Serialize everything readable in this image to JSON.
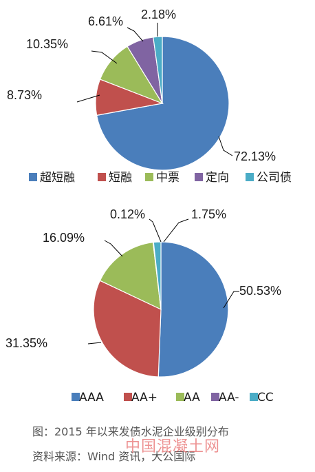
{
  "chart_data": [
    {
      "type": "pie",
      "title": "",
      "categories": [
        "超短融",
        "短融",
        "中票",
        "定向",
        "公司债"
      ],
      "values": [
        72.13,
        8.73,
        10.35,
        6.61,
        2.18
      ],
      "value_labels": [
        "72.13%",
        "8.73%",
        "10.35%",
        "6.61%",
        "2.18%"
      ],
      "colors": [
        "#4a7ebb",
        "#c0504d",
        "#9bbb59",
        "#8064a2",
        "#4bacc6"
      ],
      "legend_position": "bottom"
    },
    {
      "type": "pie",
      "title": "",
      "categories": [
        "AAA",
        "AA+",
        "AA",
        "AA-",
        "CC"
      ],
      "values": [
        50.53,
        31.35,
        16.09,
        0.12,
        1.75
      ],
      "value_labels": [
        "50.53%",
        "31.35%",
        "16.09%",
        "0.12%",
        "1.75%"
      ],
      "colors": [
        "#4a7ebb",
        "#c0504d",
        "#9bbb59",
        "#8064a2",
        "#4bacc6"
      ],
      "legend_position": "bottom"
    }
  ],
  "caption": {
    "figure": "图：2015 年以来发债水泥企业级别分布",
    "source": "资料来源：Wind 资讯，大公国际"
  },
  "watermark": "中国混凝土网"
}
